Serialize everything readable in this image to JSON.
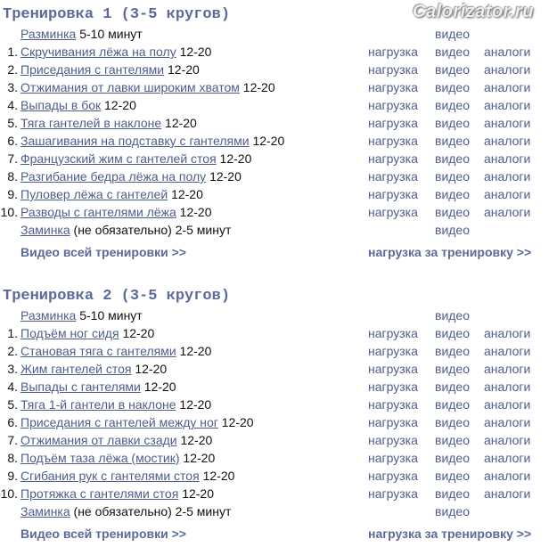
{
  "columns": {
    "load": "нагрузка",
    "video": "видео",
    "analogs": "аналоги"
  },
  "workouts": [
    {
      "title": "Тренировка 1 (3-5 кругов)",
      "warmup": {
        "name": "Разминка",
        "detail": "5-10 минут"
      },
      "exercises": [
        {
          "num": "1.",
          "name": "Скручивания лёжа на полу",
          "reps": "12-20"
        },
        {
          "num": "2.",
          "name": "Приседания с гантелями",
          "reps": "12-20"
        },
        {
          "num": "3.",
          "name": "Отжимания от лавки широким хватом",
          "reps": "12-20"
        },
        {
          "num": "4.",
          "name": "Выпады в бок",
          "reps": "12-20"
        },
        {
          "num": "5.",
          "name": "Тяга гантелей в наклоне",
          "reps": "12-20"
        },
        {
          "num": "6.",
          "name": "Зашагивания на подставку с гантелями",
          "reps": "12-20"
        },
        {
          "num": "7.",
          "name": "Французский жим с гантелей стоя",
          "reps": "12-20"
        },
        {
          "num": "8.",
          "name": "Разгибание бедра лёжа на полу",
          "reps": "12-20"
        },
        {
          "num": "9.",
          "name": "Пуловер лёжа с гантелей",
          "reps": "12-20"
        },
        {
          "num": "10.",
          "name": "Разводы с гантелями лёжа",
          "reps": "12-20"
        }
      ],
      "cooldown": {
        "name": "Заминка",
        "detail": "(не обязательно) 2-5 минут"
      },
      "footer": {
        "video_all": "Видео всей тренировки >>",
        "load_all": "нагрузка за тренировку >>"
      }
    },
    {
      "title": "Тренировка 2 (3-5 кругов)",
      "warmup": {
        "name": "Разминка",
        "detail": "5-10 минут"
      },
      "exercises": [
        {
          "num": "1.",
          "name": "Подъём ног сидя",
          "reps": "12-20"
        },
        {
          "num": "2.",
          "name": "Становая тяга с гантелями",
          "reps": "12-20"
        },
        {
          "num": "3.",
          "name": "Жим гантелей стоя",
          "reps": "12-20"
        },
        {
          "num": "4.",
          "name": "Выпады с гантелями",
          "reps": "12-20"
        },
        {
          "num": "5.",
          "name": "Тяга 1-й гантели в наклоне",
          "reps": "12-20"
        },
        {
          "num": "6.",
          "name": "Приседания с гантелей между ног",
          "reps": "12-20"
        },
        {
          "num": "7.",
          "name": "Отжимания от лавки сзади",
          "reps": "12-20"
        },
        {
          "num": "8.",
          "name": "Подъём таза лёжа (мостик)",
          "reps": "12-20"
        },
        {
          "num": "9.",
          "name": "Сгибания рук с гантелями стоя",
          "reps": "12-20"
        },
        {
          "num": "10.",
          "name": "Протяжка с гантелями стоя",
          "reps": "12-20"
        }
      ],
      "cooldown": {
        "name": "Заминка",
        "detail": "(не обязательно) 2-5 минут"
      },
      "footer": {
        "video_all": "Видео всей тренировки >>",
        "load_all": "нагрузка за тренировку >>"
      }
    }
  ],
  "watermark": "Calorizator.ru"
}
